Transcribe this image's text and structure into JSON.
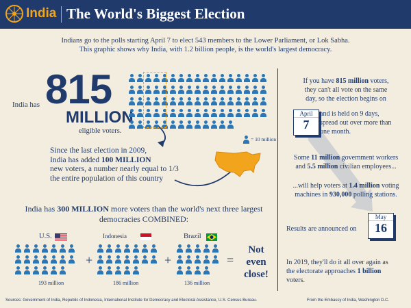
{
  "header": {
    "brand": "India",
    "title": "The World's Biggest Election"
  },
  "intro": {
    "line1": "Indians go to the polls starting April 7 to elect 543 members to the Lower Parliament, or Lok Sabha.",
    "line2": "This graphic shows why India, with 1.2 billion people, is the world's largest democracy."
  },
  "voters": {
    "prefix": "India has",
    "number": "815",
    "unit": "MILLION",
    "suffix": "eligible voters.",
    "legend": "= 10 million",
    "icon_color": "#2d76b5"
  },
  "added": {
    "line1": "Since the last election in 2009,",
    "line2_pre": "India has added ",
    "line2_bold": "100 MILLION",
    "line3": "new voters, a number nearly equal to  1/3",
    "line4": "the entire population of this country"
  },
  "comparison": {
    "headline_pre": "India has ",
    "headline_bold": "300 MILLION",
    "headline_post": " more voters than the world's next three largest",
    "headline_line2": "democracies COMBINED:",
    "countries": [
      {
        "name": "U.S.",
        "value": "193 million"
      },
      {
        "name": "Indonesia",
        "value": "186 million"
      },
      {
        "name": "Brazil",
        "value": "136 million"
      }
    ],
    "plus1": "+",
    "plus2": "+",
    "equals": "=",
    "verdict1": "Not",
    "verdict2": "even",
    "verdict3": "close!"
  },
  "timeline": {
    "p1_a": "If you have ",
    "p1_bold": "815 million",
    "p1_b": " voters,",
    "p1_line2": "they can't all vote on the same",
    "p1_line3": "day, so the election begins on",
    "cal1_month": "April",
    "cal1_day": "7",
    "p2_line1": "and is held on 9 days,",
    "p2_line2": "spread out over more than",
    "p2_line3": "one month.",
    "p3_a": "Some ",
    "p3_bold1": "11 million",
    "p3_b": " government workers",
    "p3_line2_a": "and ",
    "p3_bold2": "5.5 million",
    "p3_line2_b": " civilian employees...",
    "p4_line1_a": "...will help voters at ",
    "p4_bold1": "1.4 million",
    "p4_line1_b": " voting",
    "p4_line2_a": "machines in ",
    "p4_bold2": "930,000",
    "p4_line2_b": " polling stations.",
    "p5": "Results are announced on",
    "cal2_month": "May",
    "cal2_day": "16",
    "p6_line1": "In 2019, they'll do it all over again as",
    "p6_line2_a": "the electorate approaches ",
    "p6_bold": "1 billion",
    "p6_line3": "voters."
  },
  "footer": {
    "sources": "Sources: Government of India, Republic of Indonesia, International Institute for Democracy and Electoral Assistance, U.S. Census Bureau.",
    "embassy": "From the Embassy of India, Washington D.C."
  }
}
